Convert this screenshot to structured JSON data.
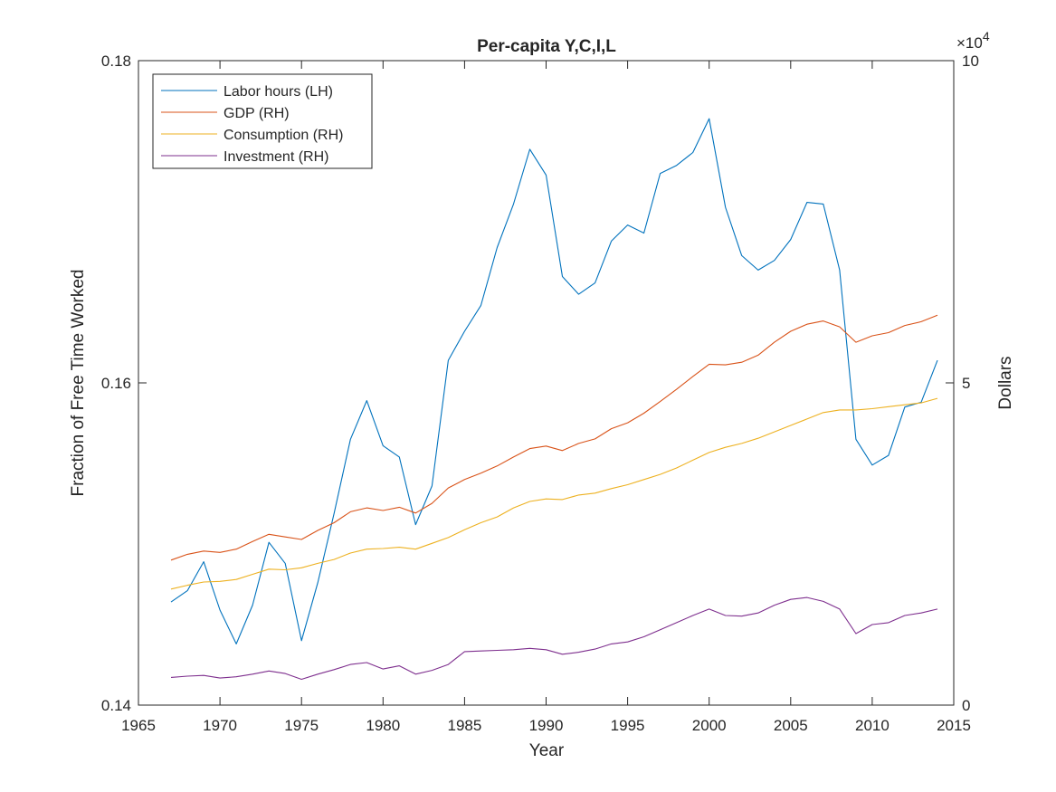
{
  "chart_data": {
    "type": "line",
    "title": "Per-capita Y,C,I,L",
    "xlabel": "Year",
    "ylabel_left": "Fraction of Free Time Worked",
    "ylabel_right": "Dollars",
    "right_axis_exponent_base": "×10",
    "right_axis_exponent_power": "4",
    "xlim": [
      1965,
      2015
    ],
    "ylim_left": [
      0.14,
      0.18
    ],
    "ylim_right": [
      0,
      100000
    ],
    "x_ticks": [
      "1965",
      "1970",
      "1975",
      "1980",
      "1985",
      "1990",
      "1995",
      "2000",
      "2005",
      "2010",
      "2015"
    ],
    "x_tick_values": [
      1965,
      1970,
      1975,
      1980,
      1985,
      1990,
      1995,
      2000,
      2005,
      2010,
      2015
    ],
    "y_ticks_left": [
      "0.14",
      "0.16",
      "0.18"
    ],
    "y_tick_values_left": [
      0.14,
      0.16,
      0.18
    ],
    "y_ticks_right": [
      "0",
      "5",
      "10"
    ],
    "y_tick_values_right": [
      0,
      50000,
      100000
    ],
    "legend_location": "top-left",
    "grid": false,
    "x": [
      1967,
      1968,
      1969,
      1970,
      1971,
      1972,
      1973,
      1974,
      1975,
      1976,
      1977,
      1978,
      1979,
      1980,
      1981,
      1982,
      1983,
      1984,
      1985,
      1986,
      1987,
      1988,
      1989,
      1990,
      1991,
      1992,
      1993,
      1994,
      1995,
      1996,
      1997,
      1998,
      1999,
      2000,
      2001,
      2002,
      2003,
      2004,
      2005,
      2006,
      2007,
      2008,
      2009,
      2010,
      2011,
      2012,
      2013,
      2014
    ],
    "series": [
      {
        "name": "Labor hours (LH)",
        "axis": "left",
        "color": "#0072BD",
        "values": [
          0.1464,
          0.1471,
          0.1489,
          0.1459,
          0.1438,
          0.1462,
          0.1501,
          0.1488,
          0.144,
          0.1476,
          0.1519,
          0.1565,
          0.1589,
          0.1561,
          0.1554,
          0.1512,
          0.1536,
          0.1614,
          0.1632,
          0.1648,
          0.1684,
          0.1711,
          0.1745,
          0.1729,
          0.1666,
          0.1655,
          0.1662,
          0.1688,
          0.1698,
          0.1693,
          0.173,
          0.1735,
          0.1743,
          0.1764,
          0.1709,
          0.1679,
          0.167,
          0.1676,
          0.1689,
          0.1712,
          0.1711,
          0.167,
          0.1565,
          0.1549,
          0.1555,
          0.1585,
          0.1588,
          0.1614
        ]
      },
      {
        "name": "GDP (RH)",
        "axis": "right",
        "color": "#D95319",
        "values": [
          22500,
          23400,
          23900,
          23700,
          24200,
          25400,
          26500,
          26100,
          25700,
          27100,
          28300,
          30000,
          30600,
          30200,
          30700,
          29800,
          31300,
          33700,
          35000,
          36000,
          37100,
          38500,
          39800,
          40200,
          39500,
          40600,
          41300,
          42900,
          43800,
          45300,
          47100,
          49000,
          51000,
          52900,
          52800,
          53200,
          54300,
          56300,
          58000,
          59100,
          59600,
          58700,
          56300,
          57300,
          57800,
          58900,
          59500,
          60500
        ]
      },
      {
        "name": "Consumption (RH)",
        "axis": "right",
        "color": "#EDB120",
        "values": [
          18000,
          18600,
          19100,
          19200,
          19500,
          20300,
          21100,
          21000,
          21300,
          22000,
          22600,
          23600,
          24200,
          24300,
          24500,
          24200,
          25100,
          26000,
          27200,
          28300,
          29200,
          30600,
          31600,
          32000,
          31900,
          32600,
          32900,
          33600,
          34200,
          35000,
          35800,
          36800,
          38000,
          39200,
          40000,
          40600,
          41400,
          42400,
          43400,
          44400,
          45400,
          45800,
          45800,
          46000,
          46300,
          46600,
          46900,
          47600
        ]
      },
      {
        "name": "Investment (RH)",
        "axis": "right",
        "color": "#7E2F8E",
        "values": [
          4300,
          4500,
          4600,
          4200,
          4400,
          4800,
          5300,
          4900,
          4000,
          4800,
          5500,
          6300,
          6600,
          5600,
          6100,
          4800,
          5400,
          6300,
          8300,
          8400,
          8500,
          8600,
          8800,
          8600,
          7900,
          8200,
          8700,
          9500,
          9800,
          10600,
          11700,
          12800,
          13900,
          14900,
          13900,
          13800,
          14300,
          15500,
          16400,
          16700,
          16100,
          14900,
          11100,
          12500,
          12800,
          13900,
          14300,
          14900
        ]
      }
    ]
  }
}
